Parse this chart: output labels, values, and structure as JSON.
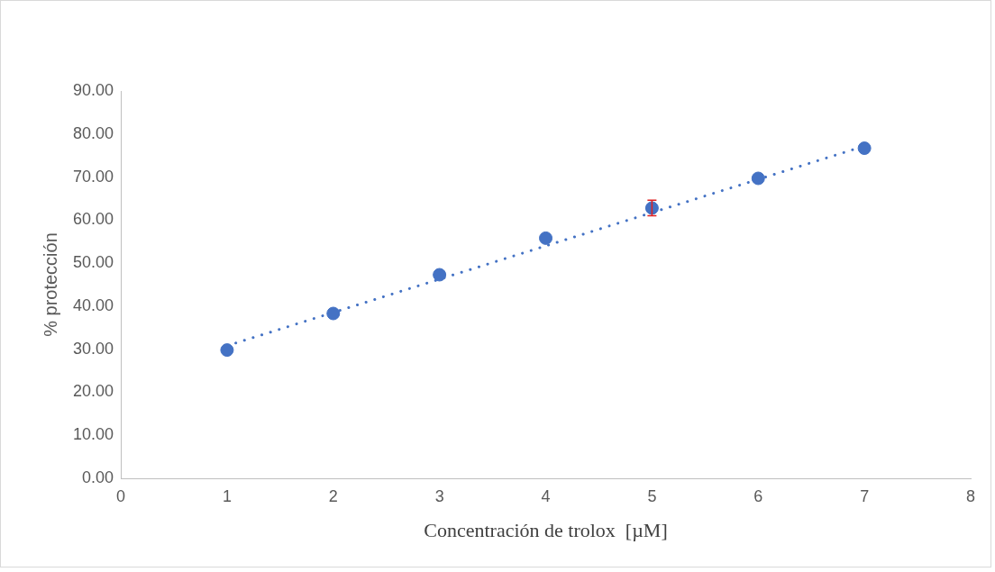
{
  "chart_data": {
    "type": "scatter",
    "xlabel": "Concentración de trolox  [µM]",
    "ylabel": "% protección",
    "x": [
      1,
      2,
      3,
      4,
      5,
      6,
      7
    ],
    "series": [
      {
        "type": "scatter",
        "color": "#4472c4",
        "values": [
          29.8,
          38.3,
          47.3,
          55.8,
          62.8,
          69.7,
          76.7
        ],
        "errors": [
          null,
          null,
          null,
          null,
          1.8,
          null,
          null
        ],
        "marker": "circle"
      },
      {
        "type": "line",
        "color": "#4472c4",
        "x": [
          1,
          7
        ],
        "values": [
          30.8,
          77.2
        ],
        "line_style": "dotted",
        "marker": "none"
      }
    ],
    "xlim": [
      0,
      8
    ],
    "xticks": [
      0,
      1,
      2,
      3,
      4,
      5,
      6,
      7,
      8
    ],
    "ylim": [
      0,
      90
    ],
    "yticks": [
      {
        "value": 0,
        "label": "0.00"
      },
      {
        "value": 10,
        "label": "10.00"
      },
      {
        "value": 20,
        "label": "20.00"
      },
      {
        "value": 30,
        "label": "30.00"
      },
      {
        "value": 40,
        "label": "40.00"
      },
      {
        "value": 50,
        "label": "50.00"
      },
      {
        "value": 60,
        "label": "60.00"
      },
      {
        "value": 70,
        "label": "70.00"
      },
      {
        "value": 80,
        "label": "80.00"
      },
      {
        "value": 90,
        "label": "90.00"
      }
    ],
    "grid": false,
    "legend": false
  }
}
